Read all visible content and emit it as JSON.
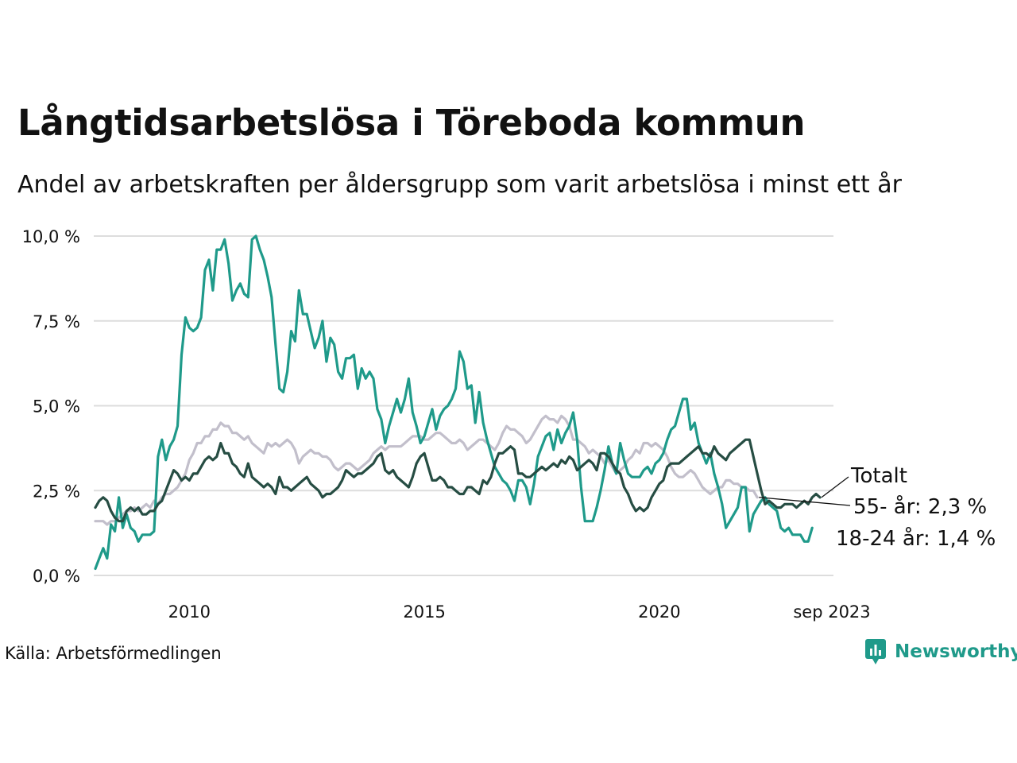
{
  "title": "Långtidsarbetslösa i Töreboda kommun",
  "subtitle": "Andel av arbetskraften per åldersgrupp som varit arbetslösa i minst ett år",
  "source": "Källa: Arbetsförmedlingen",
  "brand": "Newsworthy",
  "colors": {
    "totalt": "#264d43",
    "age55": "#c2bfcb",
    "age18_24": "#1f9a8a",
    "grid": "#dddddd",
    "brand": "#1f9a8a"
  },
  "chart_data": {
    "type": "line",
    "x_start": 2008.0,
    "x_step": 0.0833333,
    "xlim": [
      2008.0,
      2023.67
    ],
    "ylim": [
      0,
      10
    ],
    "y_ticks": [
      0,
      2.5,
      5,
      7.5,
      10
    ],
    "y_tick_labels": [
      "0,0 %",
      "2,5 %",
      "5,0 %",
      "7,5 %",
      "10,0 %"
    ],
    "x_ticks": [
      2010,
      2015,
      2020,
      2023.67
    ],
    "x_tick_labels": [
      "2010",
      "2015",
      "2020",
      "sep 2023"
    ],
    "grid": true,
    "series": [
      {
        "name": "55- år",
        "key": "age55",
        "end_label": "55- år: 2,3 %",
        "values": [
          1.6,
          1.6,
          1.6,
          1.5,
          1.6,
          1.6,
          1.7,
          1.8,
          1.9,
          1.9,
          2.0,
          1.9,
          2.0,
          2.1,
          2.0,
          2.2,
          2.1,
          2.3,
          2.4,
          2.4,
          2.5,
          2.6,
          2.8,
          3.0,
          3.4,
          3.6,
          3.9,
          3.9,
          4.1,
          4.1,
          4.3,
          4.3,
          4.5,
          4.4,
          4.4,
          4.2,
          4.2,
          4.1,
          4.0,
          4.1,
          3.9,
          3.8,
          3.7,
          3.6,
          3.9,
          3.8,
          3.9,
          3.8,
          3.9,
          4.0,
          3.9,
          3.7,
          3.3,
          3.5,
          3.6,
          3.7,
          3.6,
          3.6,
          3.5,
          3.5,
          3.4,
          3.2,
          3.1,
          3.2,
          3.3,
          3.3,
          3.2,
          3.1,
          3.2,
          3.3,
          3.4,
          3.6,
          3.7,
          3.8,
          3.7,
          3.8,
          3.8,
          3.8,
          3.8,
          3.9,
          4.0,
          4.1,
          4.1,
          4.1,
          4.0,
          4.0,
          4.1,
          4.2,
          4.2,
          4.1,
          4.0,
          3.9,
          3.9,
          4.0,
          3.9,
          3.7,
          3.8,
          3.9,
          4.0,
          4.0,
          3.9,
          3.8,
          3.7,
          3.9,
          4.2,
          4.4,
          4.3,
          4.3,
          4.2,
          4.1,
          3.9,
          4.0,
          4.2,
          4.4,
          4.6,
          4.7,
          4.6,
          4.6,
          4.5,
          4.7,
          4.6,
          4.4,
          4.0,
          4.0,
          3.9,
          3.8,
          3.6,
          3.7,
          3.6,
          3.5,
          3.3,
          3.4,
          3.2,
          3.0,
          3.1,
          3.2,
          3.4,
          3.5,
          3.7,
          3.6,
          3.9,
          3.9,
          3.8,
          3.9,
          3.8,
          3.7,
          3.5,
          3.2,
          3.0,
          2.9,
          2.9,
          3.0,
          3.1,
          3.0,
          2.8,
          2.6,
          2.5,
          2.4,
          2.5,
          2.6,
          2.6,
          2.8,
          2.8,
          2.7,
          2.7,
          2.6,
          2.6,
          2.5,
          2.5,
          2.3
        ]
      },
      {
        "name": "18-24 år",
        "key": "age18_24",
        "end_label": "18-24 år: 1,4 %",
        "values": [
          0.2,
          0.5,
          0.8,
          0.5,
          1.5,
          1.3,
          2.3,
          1.4,
          1.8,
          1.4,
          1.3,
          1.0,
          1.2,
          1.2,
          1.2,
          1.3,
          3.5,
          4.0,
          3.4,
          3.8,
          4.0,
          4.4,
          6.5,
          7.6,
          7.3,
          7.2,
          7.3,
          7.6,
          9.0,
          9.3,
          8.4,
          9.6,
          9.6,
          9.9,
          9.2,
          8.1,
          8.4,
          8.6,
          8.3,
          8.2,
          9.9,
          10.0,
          9.6,
          9.3,
          8.8,
          8.2,
          6.8,
          5.5,
          5.4,
          6.0,
          7.2,
          6.9,
          8.4,
          7.7,
          7.7,
          7.2,
          6.7,
          7.0,
          7.5,
          6.3,
          7.0,
          6.8,
          6.0,
          5.8,
          6.4,
          6.4,
          6.5,
          5.5,
          6.1,
          5.8,
          6.0,
          5.8,
          4.9,
          4.6,
          3.9,
          4.4,
          4.8,
          5.2,
          4.8,
          5.2,
          5.8,
          4.8,
          4.4,
          3.9,
          4.1,
          4.5,
          4.9,
          4.3,
          4.7,
          4.9,
          5.0,
          5.2,
          5.5,
          6.6,
          6.3,
          5.5,
          5.6,
          4.5,
          5.4,
          4.5,
          4.0,
          3.6,
          3.2,
          3.0,
          2.8,
          2.7,
          2.5,
          2.2,
          2.8,
          2.8,
          2.6,
          2.1,
          2.7,
          3.5,
          3.8,
          4.1,
          4.2,
          3.7,
          4.3,
          3.9,
          4.2,
          4.4,
          4.8,
          4.0,
          2.6,
          1.6,
          1.6,
          1.6,
          2.0,
          2.5,
          3.1,
          3.8,
          3.3,
          3.0,
          3.9,
          3.4,
          3.0,
          2.9,
          2.9,
          2.9,
          3.1,
          3.2,
          3.0,
          3.3,
          3.4,
          3.6,
          4.0,
          4.3,
          4.4,
          4.8,
          5.2,
          5.2,
          4.3,
          4.5,
          3.9,
          3.6,
          3.3,
          3.6,
          3.0,
          2.6,
          2.1,
          1.4,
          1.6,
          1.8,
          2.0,
          2.6,
          2.6,
          1.3,
          1.8,
          2.0,
          2.2,
          2.3,
          2.1,
          2.0,
          1.9,
          1.4,
          1.3,
          1.4,
          1.2,
          1.2,
          1.2,
          1.0,
          1.0,
          1.4
        ]
      },
      {
        "name": "Totalt",
        "key": "totalt",
        "end_label": "Totalt",
        "values": [
          2.0,
          2.2,
          2.3,
          2.2,
          1.9,
          1.7,
          1.6,
          1.6,
          1.9,
          2.0,
          1.9,
          2.0,
          1.8,
          1.8,
          1.9,
          1.9,
          2.1,
          2.2,
          2.5,
          2.8,
          3.1,
          3.0,
          2.8,
          2.9,
          2.8,
          3.0,
          3.0,
          3.2,
          3.4,
          3.5,
          3.4,
          3.5,
          3.9,
          3.6,
          3.6,
          3.3,
          3.2,
          3.0,
          2.9,
          3.3,
          2.9,
          2.8,
          2.7,
          2.6,
          2.7,
          2.6,
          2.4,
          2.9,
          2.6,
          2.6,
          2.5,
          2.6,
          2.7,
          2.8,
          2.9,
          2.7,
          2.6,
          2.5,
          2.3,
          2.4,
          2.4,
          2.5,
          2.6,
          2.8,
          3.1,
          3.0,
          2.9,
          3.0,
          3.0,
          3.1,
          3.2,
          3.3,
          3.5,
          3.6,
          3.1,
          3.0,
          3.1,
          2.9,
          2.8,
          2.7,
          2.6,
          2.9,
          3.3,
          3.5,
          3.6,
          3.2,
          2.8,
          2.8,
          2.9,
          2.8,
          2.6,
          2.6,
          2.5,
          2.4,
          2.4,
          2.6,
          2.6,
          2.5,
          2.4,
          2.8,
          2.7,
          2.9,
          3.3,
          3.6,
          3.6,
          3.7,
          3.8,
          3.7,
          3.0,
          3.0,
          2.9,
          2.9,
          3.0,
          3.1,
          3.2,
          3.1,
          3.2,
          3.3,
          3.2,
          3.4,
          3.3,
          3.5,
          3.4,
          3.1,
          3.2,
          3.3,
          3.4,
          3.3,
          3.1,
          3.6,
          3.6,
          3.5,
          3.3,
          3.1,
          3.0,
          2.6,
          2.4,
          2.1,
          1.9,
          2.0,
          1.9,
          2.0,
          2.3,
          2.5,
          2.7,
          2.8,
          3.2,
          3.3,
          3.3,
          3.3,
          3.4,
          3.5,
          3.6,
          3.7,
          3.8,
          3.6,
          3.6,
          3.5,
          3.8,
          3.6,
          3.5,
          3.4,
          3.6,
          3.7,
          3.8,
          3.9,
          4.0,
          4.0,
          3.5,
          3.0,
          2.5,
          2.1,
          2.2,
          2.1,
          2.0,
          2.0,
          2.1,
          2.1,
          2.1,
          2.0,
          2.1,
          2.2,
          2.1,
          2.3,
          2.4,
          2.3
        ]
      }
    ]
  }
}
